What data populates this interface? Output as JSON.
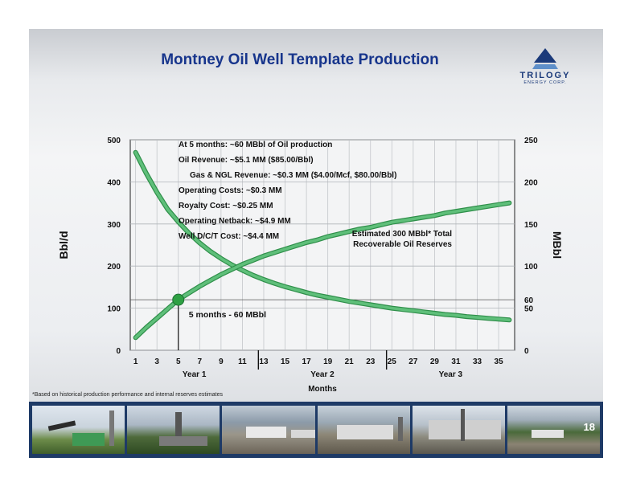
{
  "slide": {
    "title": "Montney Oil Well Template Production",
    "logo_text": "TRILOGY",
    "logo_sub": "ENERGY CORP.",
    "footnote": "*Based on historical production performance and internal reserves estimates",
    "page_number": "18"
  },
  "colors": {
    "title": "#17358c",
    "curve": "#5fbf7a",
    "marker": "#2ea043",
    "photo_strip": "#1e3a66"
  },
  "chart_data": {
    "type": "line",
    "title": "",
    "xlabel": "Months",
    "ylabel_left": "Bbl/d",
    "ylabel_right": "MBbl",
    "x_ticks": [
      1,
      3,
      5,
      7,
      9,
      11,
      13,
      15,
      17,
      19,
      21,
      23,
      25,
      27,
      29,
      31,
      33,
      35
    ],
    "xlim": [
      0.5,
      36.5
    ],
    "year_labels": [
      {
        "label": "Year 1",
        "center_month": 6.5
      },
      {
        "label": "Year 2",
        "center_month": 18.5
      },
      {
        "label": "Year 3",
        "center_month": 30.5
      }
    ],
    "year_dividers": [
      12.5,
      24.5
    ],
    "ylim_left": [
      0,
      500
    ],
    "yticks_left": [
      0,
      100,
      200,
      300,
      400,
      500
    ],
    "ylim_right": [
      0,
      250
    ],
    "yticks_right": [
      0,
      50,
      60,
      100,
      150,
      200,
      250
    ],
    "grid": true,
    "series": [
      {
        "axis": "left",
        "x": [
          1,
          2,
          3,
          4,
          5,
          6,
          7,
          8,
          9,
          10,
          11,
          12,
          13,
          14,
          15,
          16,
          17,
          18,
          19,
          20,
          21,
          22,
          23,
          24,
          25,
          26,
          27,
          28,
          29,
          30,
          31,
          32,
          33,
          34,
          35,
          36
        ],
        "values": [
          470,
          420,
          375,
          335,
          305,
          278,
          255,
          235,
          218,
          203,
          190,
          178,
          168,
          159,
          151,
          144,
          137,
          131,
          126,
          121,
          116,
          112,
          108,
          104,
          100,
          97,
          94,
          91,
          88,
          85,
          83,
          80,
          78,
          76,
          74,
          72
        ]
      },
      {
        "axis": "right",
        "x": [
          1,
          2,
          3,
          4,
          5,
          6,
          7,
          8,
          9,
          10,
          11,
          12,
          13,
          14,
          15,
          16,
          17,
          18,
          19,
          20,
          21,
          22,
          23,
          24,
          25,
          26,
          27,
          28,
          29,
          30,
          31,
          32,
          33,
          34,
          35,
          36
        ],
        "values": [
          15,
          27,
          38,
          49,
          60,
          68,
          76,
          83,
          90,
          96,
          102,
          107,
          112,
          116,
          120,
          124,
          128,
          131,
          135,
          138,
          141,
          144,
          146,
          149,
          152,
          154,
          156,
          158,
          160,
          163,
          165,
          167,
          169,
          171,
          173,
          175
        ]
      }
    ],
    "marker": {
      "x": 5,
      "value_right": 60,
      "label": "5 months - 60 MBbl"
    },
    "reference_line_right": 60,
    "notes": [
      "At 5 months: ~60 MBbl of Oil production",
      "Oil Revenue: ~$5.1 MM ($85.00/Bbl)",
      "Gas & NGL Revenue: ~$0.3 MM ($4.00/Mcf, $80.00/Bbl)",
      "Operating Costs: ~$0.3 MM",
      "Royalty Cost: ~$0.25 MM",
      "Operating Netback: ~$4.9 MM",
      "Well D/C/T Cost: ~$4.4 MM"
    ],
    "reserves_annotation": [
      "Estimated 300 MBbl* Total",
      "Recoverable Oil Reserves"
    ]
  }
}
